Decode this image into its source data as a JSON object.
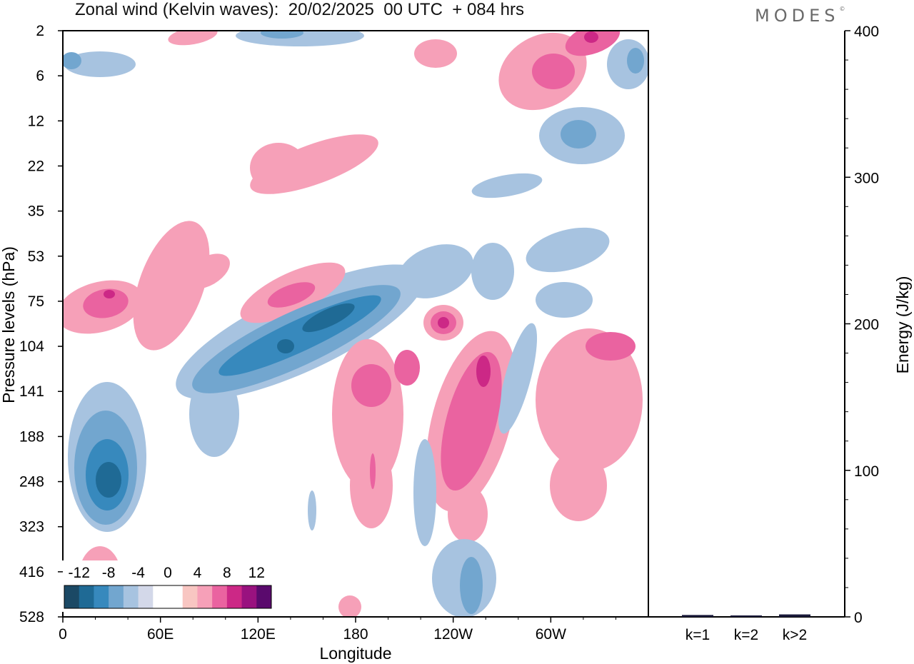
{
  "header": {
    "title": "Zonal wind (Kelvin waves):  20/02/2025  00 UTC  + 084 hrs",
    "logo": "MODES"
  },
  "colors": {
    "neg": [
      "#1b4965",
      "#1f6a95",
      "#3789bd",
      "#72a6cf",
      "#a7c3e0",
      "#d3d8e9"
    ],
    "zero": "#ffffff",
    "pos": [
      "#f8c6c2",
      "#f6a0b8",
      "#ea63a0",
      "#cc2886",
      "#99127f",
      "#5a0a6d"
    ]
  },
  "chart_data": [
    {
      "type": "heatmap",
      "title": "Zonal wind (Kelvin waves):  20/02/2025  00 UTC  + 084 hrs",
      "xlabel": "Longitude",
      "ylabel": "Pressure levels (hPa)",
      "x_ticks": [
        "0",
        "60E",
        "120E",
        "180",
        "120W",
        "60W"
      ],
      "y_ticks": [
        "2",
        "6",
        "12",
        "22",
        "35",
        "53",
        "75",
        "104",
        "141",
        "188",
        "248",
        "323",
        "416",
        "528"
      ],
      "colorbar_labels": [
        "-12",
        "-8",
        "-4",
        "0",
        "4",
        "8",
        "12"
      ],
      "colorbar_levels": [
        -14,
        -12,
        -10,
        -8,
        -6,
        -4,
        -2,
        2,
        4,
        6,
        8,
        10,
        12,
        14
      ],
      "features": [
        {
          "lon": 30,
          "p": 248,
          "value": -10
        },
        {
          "lon": 30,
          "p": 75,
          "value": 9
        },
        {
          "lon": 150,
          "p": 104,
          "value": -11
        },
        {
          "lon": 155,
          "p": 75,
          "value": 7
        },
        {
          "lon": 212,
          "p": 90,
          "value": 8
        },
        {
          "lon": 232,
          "p": 141,
          "value": 7
        },
        {
          "lon": 290,
          "p": 104,
          "value": 6
        },
        {
          "lon": 320,
          "p": 2,
          "value": 7
        },
        {
          "lon": 300,
          "p": 12,
          "value": -4
        },
        {
          "lon": 225,
          "p": 416,
          "value": -4
        }
      ]
    },
    {
      "type": "bar",
      "categories": [
        "k=1",
        "k=2",
        "k>2"
      ],
      "values": [
        0.8,
        0.5,
        1.2
      ],
      "ylabel": "Energy (J/kg)",
      "ylim": [
        0,
        400
      ],
      "y_ticks": [
        "0",
        "100",
        "200",
        "300",
        "400"
      ]
    }
  ]
}
